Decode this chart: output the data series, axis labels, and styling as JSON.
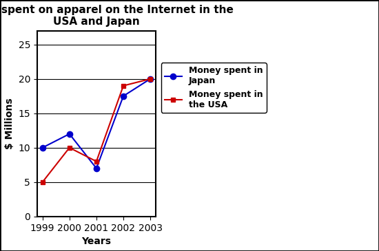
{
  "title": "Money spent on apparel on the Internet in the\nUSA and Japan",
  "xlabel": "Years",
  "ylabel": "$ Millions",
  "years": [
    1999,
    2000,
    2001,
    2002,
    2003
  ],
  "japan_values": [
    10,
    12,
    7,
    17.5,
    20
  ],
  "usa_values": [
    5,
    10,
    8,
    19,
    20
  ],
  "japan_color": "#0000cc",
  "usa_color": "#cc0000",
  "japan_label": "Money spent in\nJapan",
  "usa_label": "Money spent in\nthe USA",
  "ylim": [
    0,
    27
  ],
  "yticks": [
    0,
    5,
    10,
    15,
    20,
    25
  ],
  "background_color": "#ffffff",
  "plot_bg_color": "#ffffff",
  "border_color": "#000000",
  "title_fontsize": 11,
  "axis_label_fontsize": 10,
  "tick_fontsize": 10,
  "legend_fontsize": 9
}
